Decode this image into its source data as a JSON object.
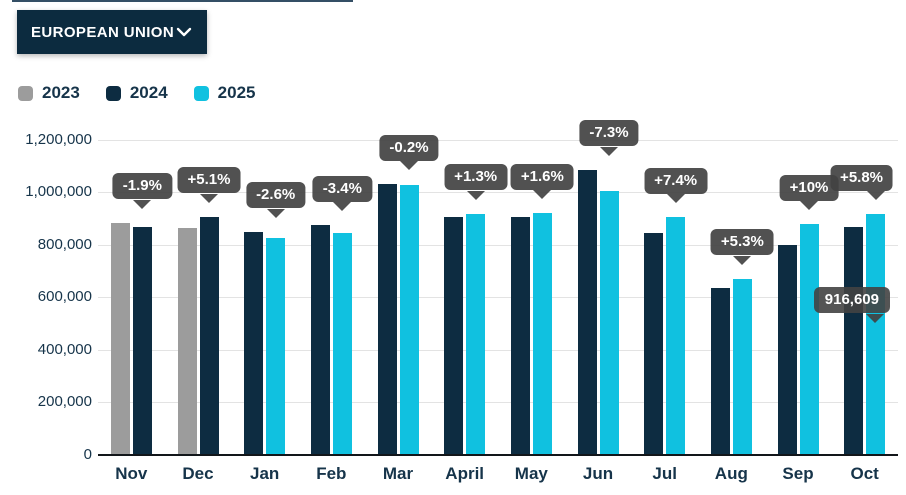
{
  "header": {
    "region_selector": "EUROPEAN UNION"
  },
  "legend": [
    {
      "label": "2023",
      "color": "#9c9c9c"
    },
    {
      "label": "2024",
      "color": "#0d2c41"
    },
    {
      "label": "2025",
      "color": "#10c1e0"
    }
  ],
  "colors": {
    "accent_navy": "#0c2b3f",
    "accent_cyan": "#10c1e0",
    "neutral_gray": "#9c9c9c",
    "tooltip_bg": "#424242",
    "axis_text": "#16344a",
    "gridline": "#e3e3e3"
  },
  "chart_data": {
    "type": "bar",
    "title": "",
    "xlabel": "",
    "ylabel": "",
    "categories": [
      "Nov",
      "Dec",
      "Jan",
      "Feb",
      "Mar",
      "April",
      "May",
      "Jun",
      "Jul",
      "Aug",
      "Sep",
      "Oct"
    ],
    "series": [
      {
        "name": "2023",
        "color": "#9c9c9c",
        "values": [
          884000,
          862000,
          null,
          null,
          null,
          null,
          null,
          null,
          null,
          null,
          null,
          null
        ]
      },
      {
        "name": "2024",
        "color": "#0d2c41",
        "values": [
          867000,
          906000,
          849000,
          873000,
          1030000,
          905000,
          906000,
          1085000,
          843000,
          636000,
          798000,
          866000
        ]
      },
      {
        "name": "2025",
        "color": "#10c1e0",
        "values": [
          null,
          null,
          827000,
          843000,
          1028000,
          917000,
          920000,
          1006000,
          905000,
          670000,
          878000,
          916609
        ]
      }
    ],
    "change_labels": [
      "-1.9%",
      "+5.1%",
      "-2.6%",
      "-3.4%",
      "-0.2%",
      "+1.3%",
      "+1.6%",
      "-7.3%",
      "+7.4%",
      "+5.3%",
      "+10%",
      "+5.8%"
    ],
    "value_tooltip": {
      "month": "Oct",
      "series": "2025",
      "text": "916,609"
    },
    "yticks": [
      {
        "value": 0,
        "label": "0"
      },
      {
        "value": 200000,
        "label": "200,000"
      },
      {
        "value": 400000,
        "label": "400,000"
      },
      {
        "value": 600000,
        "label": "600,000"
      },
      {
        "value": 800000,
        "label": "800,000"
      },
      {
        "value": 1000000,
        "label": "1,000,000"
      },
      {
        "value": 1200000,
        "label": "1,200,000"
      }
    ],
    "ylim": [
      0,
      1200000
    ],
    "grid": true,
    "legend_position": "top-left"
  }
}
